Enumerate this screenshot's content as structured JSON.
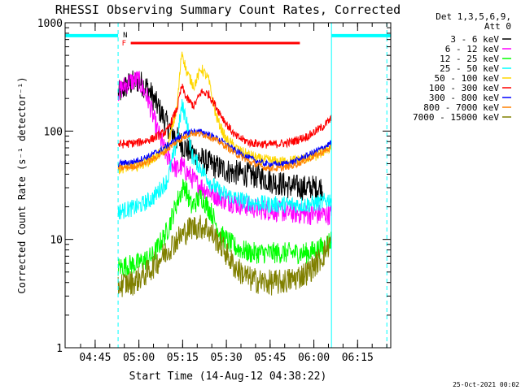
{
  "chart_data": {
    "type": "line",
    "title": "RHESSI Observing Summary Count Rates, Corrected",
    "xlabel": "Start Time (14-Aug-12 04:38:22)",
    "ylabel": "Corrected Count Rate (s⁻¹ detector⁻¹)",
    "footer": "25-Oct-2021 00:02",
    "legend_header": [
      "Det 1,3,5,6,9,",
      "Att 0"
    ],
    "legend_position": "top-right outside",
    "yscale": "log",
    "grid": false,
    "xlim": [
      0,
      6700
    ],
    "ylim": [
      1,
      1000
    ],
    "x_units": "seconds since start time",
    "yticks": [
      {
        "v": 1,
        "label": "1"
      },
      {
        "v": 10,
        "label": "10"
      },
      {
        "v": 100,
        "label": "100"
      },
      {
        "v": 1000,
        "label": "1000"
      }
    ],
    "xticks": [
      {
        "v": 618,
        "label": "04:45"
      },
      {
        "v": 1518,
        "label": "05:00"
      },
      {
        "v": 2418,
        "label": "05:15"
      },
      {
        "v": 3318,
        "label": "05:30"
      },
      {
        "v": 4218,
        "label": "05:45"
      },
      {
        "v": 5118,
        "label": "06:00"
      },
      {
        "v": 6018,
        "label": "06:15"
      }
    ],
    "attenuator_flag": {
      "label": "F",
      "x_start": 1350,
      "x_end": 4830,
      "y": 650,
      "color": "#ff0000"
    },
    "night_marker": {
      "label": "N",
      "color": "#00ffff"
    },
    "saa_bars": [
      {
        "x_start": 0,
        "x_end": 1090,
        "y": 760
      },
      {
        "x_start": 5480,
        "x_end": 6700,
        "y": 760
      }
    ],
    "boundaries": [
      {
        "x": 1090,
        "style": "dashed"
      },
      {
        "x": 5480,
        "style": "solid"
      },
      {
        "x": 6620,
        "style": "dashed"
      }
    ],
    "data_range": [
      1090,
      5480
    ],
    "series": [
      {
        "name": "3 - 6 keV",
        "color": "#000000",
        "noise": 0.12,
        "points": [
          [
            1090,
            220
          ],
          [
            1300,
            270
          ],
          [
            1500,
            290
          ],
          [
            1700,
            250
          ],
          [
            1900,
            170
          ],
          [
            2100,
            115
          ],
          [
            2300,
            85
          ],
          [
            2500,
            68
          ],
          [
            2800,
            55
          ],
          [
            3100,
            47
          ],
          [
            3400,
            42
          ],
          [
            3700,
            40
          ],
          [
            4000,
            38
          ],
          [
            4300,
            34
          ],
          [
            4600,
            31
          ],
          [
            4900,
            30
          ],
          [
            5100,
            30
          ],
          [
            5300,
            30
          ]
        ]
      },
      {
        "name": "6 - 12 keV",
        "color": "#ff00ff",
        "noise": 0.1,
        "points": [
          [
            1090,
            230
          ],
          [
            1300,
            280
          ],
          [
            1500,
            300
          ],
          [
            1700,
            200
          ],
          [
            1900,
            100
          ],
          [
            2100,
            58
          ],
          [
            2300,
            44
          ],
          [
            2400,
            48
          ],
          [
            2500,
            42
          ],
          [
            2700,
            33
          ],
          [
            3000,
            27
          ],
          [
            3300,
            23
          ],
          [
            3600,
            21
          ],
          [
            4000,
            19
          ],
          [
            4500,
            18
          ],
          [
            5000,
            17
          ],
          [
            5480,
            17
          ]
        ]
      },
      {
        "name": "12 - 25 keV",
        "color": "#00ff00",
        "noise": 0.1,
        "points": [
          [
            1090,
            5.5
          ],
          [
            1500,
            6
          ],
          [
            1800,
            7
          ],
          [
            2100,
            12
          ],
          [
            2300,
            22
          ],
          [
            2450,
            32
          ],
          [
            2600,
            20
          ],
          [
            2800,
            25
          ],
          [
            3000,
            18
          ],
          [
            3200,
            11
          ],
          [
            3500,
            8.5
          ],
          [
            3800,
            7.5
          ],
          [
            4200,
            7.5
          ],
          [
            4600,
            7.5
          ],
          [
            5000,
            7.5
          ],
          [
            5300,
            8.5
          ],
          [
            5480,
            10
          ]
        ]
      },
      {
        "name": "25 - 50 keV",
        "color": "#00ffff",
        "noise": 0.08,
        "points": [
          [
            1090,
            18
          ],
          [
            1500,
            20
          ],
          [
            1800,
            24
          ],
          [
            2100,
            35
          ],
          [
            2300,
            80
          ],
          [
            2400,
            170
          ],
          [
            2500,
            130
          ],
          [
            2600,
            60
          ],
          [
            2800,
            45
          ],
          [
            3000,
            33
          ],
          [
            3200,
            27
          ],
          [
            3500,
            24
          ],
          [
            3800,
            22
          ],
          [
            4200,
            21
          ],
          [
            4600,
            21
          ],
          [
            5000,
            21
          ],
          [
            5300,
            22
          ],
          [
            5480,
            24
          ]
        ]
      },
      {
        "name": "50 - 100 keV",
        "color": "#ffd700",
        "noise": 0.05,
        "points": [
          [
            1090,
            45
          ],
          [
            1500,
            48
          ],
          [
            1800,
            55
          ],
          [
            2100,
            70
          ],
          [
            2300,
            160
          ],
          [
            2400,
            550
          ],
          [
            2500,
            350
          ],
          [
            2650,
            260
          ],
          [
            2800,
            380
          ],
          [
            2950,
            300
          ],
          [
            3100,
            140
          ],
          [
            3300,
            85
          ],
          [
            3600,
            65
          ],
          [
            4000,
            55
          ],
          [
            4400,
            52
          ],
          [
            4800,
            54
          ],
          [
            5200,
            60
          ],
          [
            5480,
            72
          ]
        ]
      },
      {
        "name": "100 - 300 keV",
        "color": "#ff0000",
        "noise": 0.04,
        "points": [
          [
            1090,
            75
          ],
          [
            1500,
            78
          ],
          [
            1800,
            85
          ],
          [
            2100,
            100
          ],
          [
            2300,
            160
          ],
          [
            2400,
            260
          ],
          [
            2500,
            200
          ],
          [
            2650,
            170
          ],
          [
            2800,
            230
          ],
          [
            2950,
            220
          ],
          [
            3100,
            170
          ],
          [
            3300,
            120
          ],
          [
            3500,
            90
          ],
          [
            3800,
            78
          ],
          [
            4200,
            75
          ],
          [
            4600,
            78
          ],
          [
            5000,
            90
          ],
          [
            5300,
            110
          ],
          [
            5480,
            130
          ]
        ]
      },
      {
        "name": "300 - 800 keV",
        "color": "#0000ff",
        "noise": 0.03,
        "points": [
          [
            1090,
            50
          ],
          [
            1400,
            52
          ],
          [
            1700,
            58
          ],
          [
            2000,
            68
          ],
          [
            2300,
            85
          ],
          [
            2600,
            100
          ],
          [
            2900,
            96
          ],
          [
            3200,
            82
          ],
          [
            3500,
            66
          ],
          [
            3800,
            56
          ],
          [
            4100,
            50
          ],
          [
            4400,
            49
          ],
          [
            4700,
            52
          ],
          [
            5000,
            60
          ],
          [
            5300,
            70
          ],
          [
            5480,
            78
          ]
        ]
      },
      {
        "name": "800 - 7000 keV",
        "color": "#ff8000",
        "noise": 0.03,
        "points": [
          [
            1090,
            45
          ],
          [
            1400,
            47
          ],
          [
            1700,
            52
          ],
          [
            2000,
            62
          ],
          [
            2300,
            80
          ],
          [
            2600,
            96
          ],
          [
            2900,
            92
          ],
          [
            3200,
            78
          ],
          [
            3500,
            62
          ],
          [
            3800,
            52
          ],
          [
            4100,
            46
          ],
          [
            4400,
            45
          ],
          [
            4700,
            48
          ],
          [
            5000,
            55
          ],
          [
            5300,
            64
          ],
          [
            5480,
            70
          ]
        ]
      },
      {
        "name": "7000 - 15000 keV",
        "color": "#808000",
        "noise": 0.12,
        "points": [
          [
            1090,
            3.8
          ],
          [
            1400,
            4
          ],
          [
            1700,
            5
          ],
          [
            2000,
            7
          ],
          [
            2300,
            10
          ],
          [
            2600,
            13
          ],
          [
            2900,
            13
          ],
          [
            3200,
            9
          ],
          [
            3500,
            5.5
          ],
          [
            3800,
            4.3
          ],
          [
            4100,
            4
          ],
          [
            4400,
            4
          ],
          [
            4700,
            4.3
          ],
          [
            5000,
            5
          ],
          [
            5300,
            7
          ],
          [
            5480,
            10
          ]
        ]
      }
    ]
  }
}
